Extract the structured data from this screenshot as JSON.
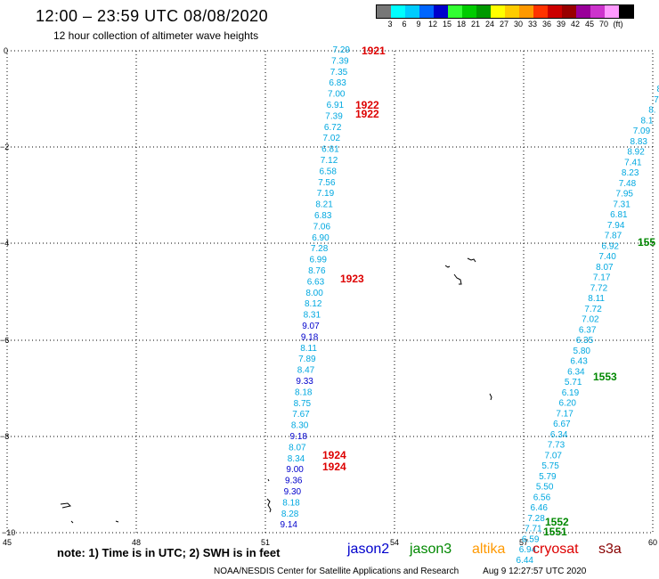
{
  "header": {
    "title": "12:00 – 23:59 UTC 08/08/2020",
    "subtitle": "12 hour collection of altimeter wave heights"
  },
  "scale": {
    "colors": [
      "#777777",
      "#00ffff",
      "#00ccff",
      "#0066ff",
      "#0000cc",
      "#33ff33",
      "#00cc00",
      "#009900",
      "#ffff00",
      "#ffcc00",
      "#ff9900",
      "#ff3300",
      "#cc0000",
      "#990000",
      "#990099",
      "#cc33cc",
      "#ff99ff",
      "#000000"
    ],
    "labels": [
      "3",
      "6",
      "9",
      "12",
      "15",
      "18",
      "21",
      "24",
      "27",
      "30",
      "33",
      "36",
      "39",
      "42",
      "45",
      "70",
      "(ft)"
    ]
  },
  "axes": {
    "x_ticks": [
      "45",
      "48",
      "51",
      "54",
      "57",
      "60"
    ],
    "y_ticks": [
      "0",
      "−2",
      "−4",
      "−6",
      "−8",
      "−10"
    ]
  },
  "tracks": {
    "track_a": [
      "7.29",
      "7.39",
      "7.35",
      "6.83",
      "7.00",
      "6.91",
      "7.39",
      "6.72",
      "7.02",
      "6.81",
      "7.12",
      "6.58",
      "7.56",
      "7.19",
      "8.21",
      "6.83",
      "7.06",
      "6.90",
      "7.28",
      "6.99",
      "8.76",
      "6.63",
      "8.00",
      "8.12",
      "8.31",
      "9.07",
      "9.18",
      "8.11",
      "7.89",
      "8.47",
      "9.33",
      "8.18",
      "8.75",
      "7.67",
      "8.30",
      "9.18",
      "8.07",
      "8.34",
      "9.00",
      "9.36",
      "9.30",
      "8.18",
      "8.28",
      "9.14"
    ],
    "track_b": [
      "8",
      "7",
      "8.",
      "8.1",
      "7.09",
      "8.83",
      "8.92",
      "7.41",
      "8.23",
      "7.48",
      "7.95",
      "7.31",
      "6.81",
      "7.94",
      "7.87",
      "6.92",
      "7.40",
      "8.07",
      "7.17",
      "7.72",
      "8.11",
      "7.72",
      "7.02",
      "6.37",
      "6.35",
      "5.80",
      "6.43",
      "6.34",
      "5.71",
      "6.19",
      "6.20",
      "7.17",
      "6.67",
      "6.34",
      "7.73",
      "7.07",
      "5.75",
      "5.79",
      "5.50",
      "6.56",
      "6.46",
      "7.28",
      "7.71",
      "6.59",
      "6.94",
      "6.44"
    ],
    "labels": [
      {
        "text": "1921",
        "color": "#dd0000"
      },
      {
        "text": "1922",
        "color": "#dd0000"
      },
      {
        "text": "1922",
        "color": "#dd0000"
      },
      {
        "text": "1923",
        "color": "#dd0000"
      },
      {
        "text": "1924",
        "color": "#dd0000"
      },
      {
        "text": "1924",
        "color": "#dd0000"
      },
      {
        "text": "155",
        "color": "#008800"
      },
      {
        "text": "1553",
        "color": "#008800"
      },
      {
        "text": "1552",
        "color": "#008800"
      },
      {
        "text": "1551",
        "color": "#008800"
      }
    ]
  },
  "footer": {
    "note": "note: 1) Time is in UTC; 2) SWH is in feet",
    "legend": [
      {
        "name": "jason2",
        "color": "#0000cc"
      },
      {
        "name": "jason3",
        "color": "#008800"
      },
      {
        "name": "altika",
        "color": "#ff9900"
      },
      {
        "name": "cryosat",
        "color": "#dd0000"
      },
      {
        "name": "s3a",
        "color": "#880000"
      }
    ],
    "credit": "NOAA/NESDIS Center for Satellite Applications and Research",
    "timestamp": "Aug  9 12:27:57 UTC 2020"
  }
}
